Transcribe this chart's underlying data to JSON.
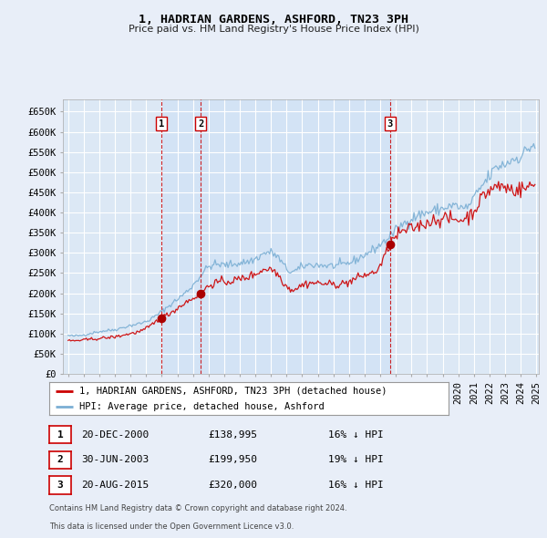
{
  "title": "1, HADRIAN GARDENS, ASHFORD, TN23 3PH",
  "subtitle": "Price paid vs. HM Land Registry's House Price Index (HPI)",
  "background_color": "#e8eef8",
  "plot_bg_color": "#dce8f5",
  "grid_color": "#ffffff",
  "ylim": [
    0,
    680000
  ],
  "yticks": [
    0,
    50000,
    100000,
    150000,
    200000,
    250000,
    300000,
    350000,
    400000,
    450000,
    500000,
    550000,
    600000,
    650000
  ],
  "ytick_labels": [
    "£0",
    "£50K",
    "£100K",
    "£150K",
    "£200K",
    "£250K",
    "£300K",
    "£350K",
    "£400K",
    "£450K",
    "£500K",
    "£550K",
    "£600K",
    "£650K"
  ],
  "sale_prices": [
    138995,
    199950,
    320000
  ],
  "sale_labels": [
    "1",
    "2",
    "3"
  ],
  "sale_info": [
    {
      "label": "1",
      "date": "20-DEC-2000",
      "price": "£138,995",
      "pct": "16% ↓ HPI"
    },
    {
      "label": "2",
      "date": "30-JUN-2003",
      "price": "£199,950",
      "pct": "19% ↓ HPI"
    },
    {
      "label": "3",
      "date": "20-AUG-2015",
      "price": "£320,000",
      "pct": "16% ↓ HPI"
    }
  ],
  "legend_line1": "1, HADRIAN GARDENS, ASHFORD, TN23 3PH (detached house)",
  "legend_line2": "HPI: Average price, detached house, Ashford",
  "footer1": "Contains HM Land Registry data © Crown copyright and database right 2024.",
  "footer2": "This data is licensed under the Open Government Licence v3.0.",
  "hpi_color": "#7bafd4",
  "price_color": "#cc0000",
  "marker_color": "#aa0000",
  "sale_line_color": "#cc0000",
  "shade_color": "#cce0f5",
  "shade_alpha": 0.5
}
